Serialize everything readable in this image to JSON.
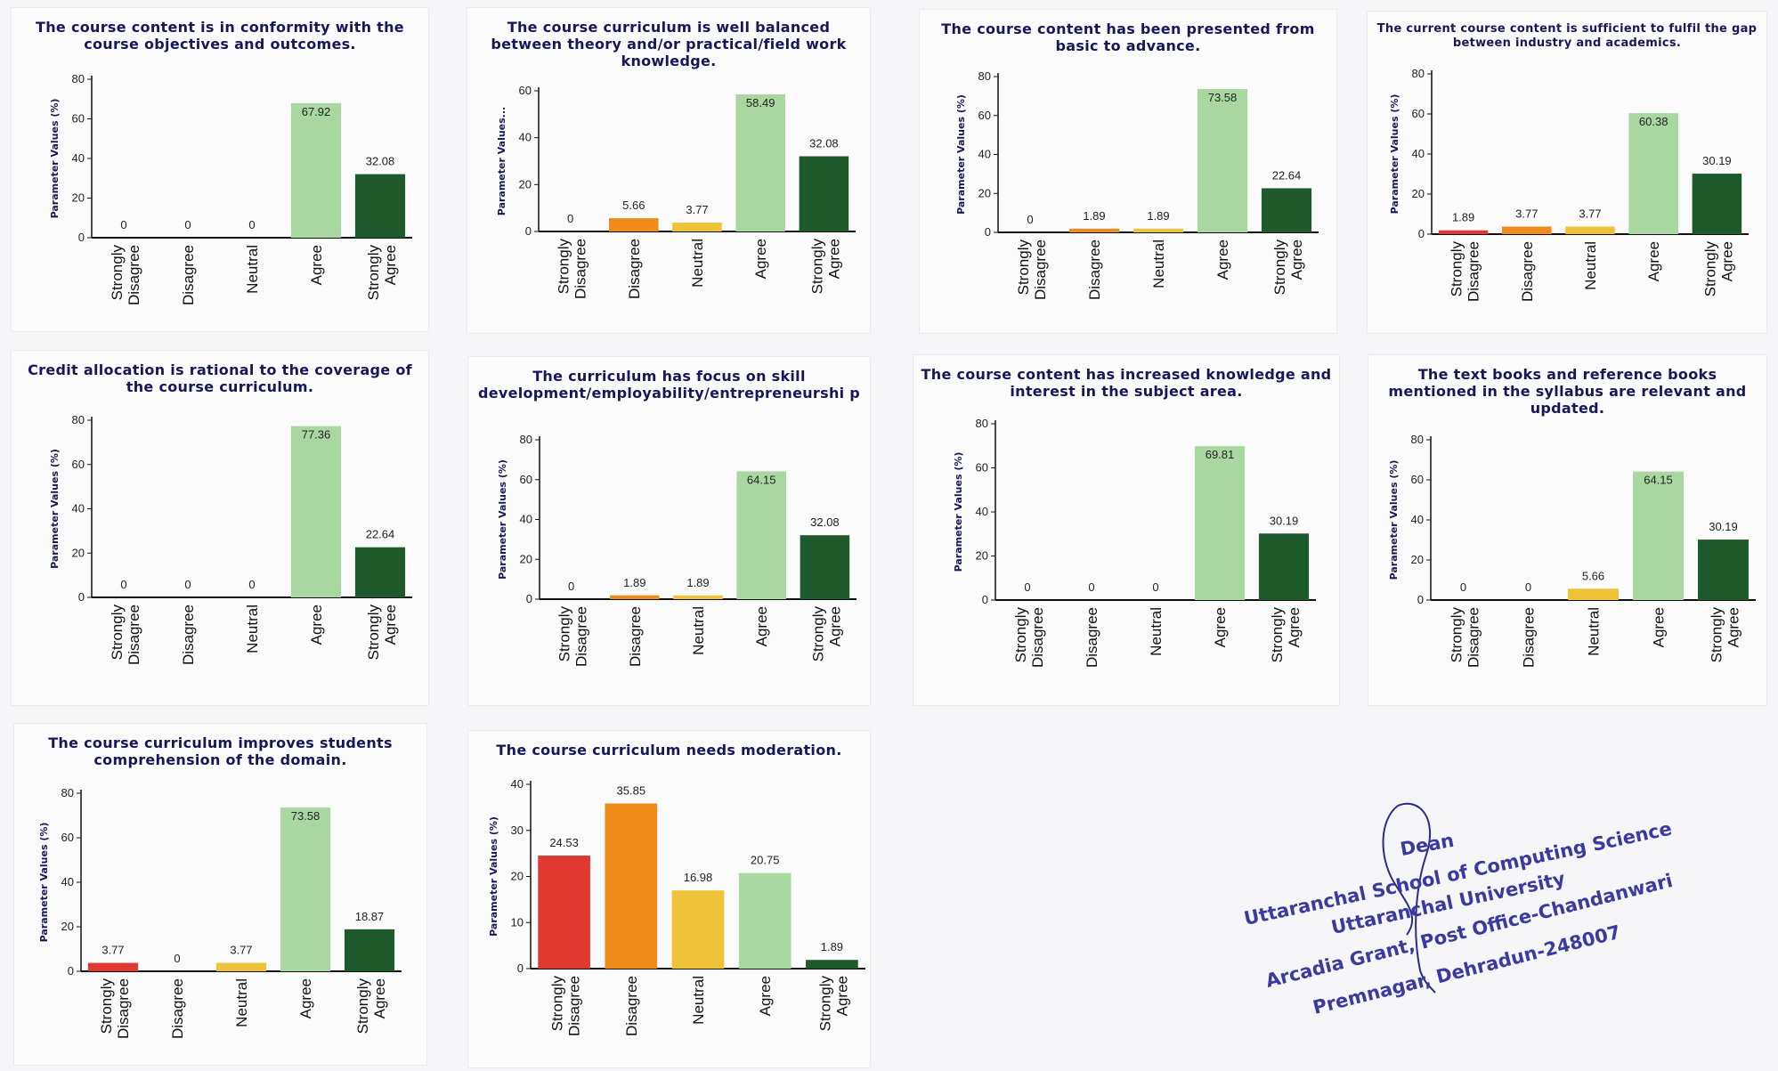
{
  "colors": {
    "strongly_disagree": "#e03a30",
    "disagree": "#f08a1a",
    "neutral": "#eec33a",
    "agree": "#a8d8a0",
    "strongly_agree": "#1f5a2c",
    "title": "#17175a"
  },
  "categories": [
    [
      "Strongly",
      "Disagree"
    ],
    [
      "Disagree"
    ],
    [
      "Neutral"
    ],
    [
      "Agree"
    ],
    [
      "Strongly",
      "Agree"
    ]
  ],
  "chart_data": [
    {
      "type": "bar",
      "title": "The course content is in conformity with the course objectives and outcomes.",
      "ylabel": "Parameter Values (%)",
      "values": [
        0,
        0,
        0,
        67.92,
        32.08
      ],
      "value_labels": [
        "0",
        "0",
        "0",
        "67.92",
        "32.08"
      ],
      "ylim": [
        0,
        80
      ],
      "yticks": [
        0,
        20,
        40,
        60,
        80
      ]
    },
    {
      "type": "bar",
      "title": "The course curriculum is well balanced between theory and/or practical/field work knowledge.",
      "ylabel": "Parameter Values...",
      "values": [
        0,
        5.66,
        3.77,
        58.49,
        32.08
      ],
      "value_labels": [
        "0",
        "5.66",
        "3.77",
        "58.49",
        "32.08"
      ],
      "ylim": [
        0,
        60
      ],
      "yticks": [
        0,
        20,
        40,
        60
      ]
    },
    {
      "type": "bar",
      "title": "The course content has been presented from basic to advance.",
      "ylabel": "Parameter Values (%)",
      "values": [
        0,
        1.89,
        1.89,
        73.58,
        22.64
      ],
      "value_labels": [
        "0",
        "1.89",
        "1.89",
        "73.58",
        "22.64"
      ],
      "ylim": [
        0,
        80
      ],
      "yticks": [
        0,
        20,
        40,
        60,
        80
      ]
    },
    {
      "type": "bar",
      "title": "The current course content is sufficient to fulfil the gap between industry and academics.",
      "ylabel": "Parameter Values (%)",
      "values": [
        1.89,
        3.77,
        3.77,
        60.38,
        30.19
      ],
      "value_labels": [
        "1.89",
        "3.77",
        "3.77",
        "60.38",
        "30.19"
      ],
      "ylim": [
        0,
        80
      ],
      "yticks": [
        0,
        20,
        40,
        60,
        80
      ]
    },
    {
      "type": "bar",
      "title": "Credit allocation is rational to the coverage of the course curriculum.",
      "ylabel": "Parameter Values (%)",
      "values": [
        0,
        0,
        0,
        77.36,
        22.64
      ],
      "value_labels": [
        "0",
        "0",
        "0",
        "77.36",
        "22.64"
      ],
      "ylim": [
        0,
        80
      ],
      "yticks": [
        0,
        20,
        40,
        60,
        80
      ]
    },
    {
      "type": "bar",
      "title": "The curriculum has focus on skill development/employability/entrepreneurshi p",
      "ylabel": "Parameter Values (%)",
      "values": [
        0,
        1.89,
        1.89,
        64.15,
        32.08
      ],
      "value_labels": [
        "0",
        "1.89",
        "1.89",
        "64.15",
        "32.08"
      ],
      "ylim": [
        0,
        80
      ],
      "yticks": [
        0,
        20,
        40,
        60,
        80
      ]
    },
    {
      "type": "bar",
      "title": "The course content has increased knowledge and interest in the subject area.",
      "ylabel": "Parameter Values (%)",
      "values": [
        0,
        0,
        0,
        69.81,
        30.19
      ],
      "value_labels": [
        "0",
        "0",
        "0",
        "69.81",
        "30.19"
      ],
      "ylim": [
        0,
        80
      ],
      "yticks": [
        0,
        20,
        40,
        60,
        80
      ]
    },
    {
      "type": "bar",
      "title": "The text books and reference books mentioned in the syllabus are relevant and updated.",
      "ylabel": "Parameter Values (%)",
      "values": [
        0,
        0,
        5.66,
        64.15,
        30.19
      ],
      "value_labels": [
        "0",
        "0",
        "5.66",
        "64.15",
        "30.19"
      ],
      "ylim": [
        0,
        80
      ],
      "yticks": [
        0,
        20,
        40,
        60,
        80
      ]
    },
    {
      "type": "bar",
      "title": "The course curriculum improves students comprehension of the domain.",
      "ylabel": "Parameter Values (%)",
      "values": [
        3.77,
        0,
        3.77,
        73.58,
        18.87
      ],
      "value_labels": [
        "3.77",
        "0",
        "3.77",
        "73.58",
        "18.87"
      ],
      "ylim": [
        0,
        80
      ],
      "yticks": [
        0,
        20,
        40,
        60,
        80
      ]
    },
    {
      "type": "bar",
      "title": "The course curriculum needs moderation.",
      "ylabel": "Parameter Values (%)",
      "values": [
        24.53,
        35.85,
        16.98,
        20.75,
        1.89
      ],
      "value_labels": [
        "24.53",
        "35.85",
        "16.98",
        "20.75",
        "1.89"
      ],
      "ylim": [
        0,
        40
      ],
      "yticks": [
        0,
        10,
        20,
        30,
        40
      ]
    }
  ],
  "stamp": {
    "lines": [
      "Dean",
      "Uttaranchal School of Computing Science",
      "Uttaranchal University",
      "Arcadia Grant, Post Office-Chandanwari",
      "Premnagar, Dehradun-248007"
    ]
  }
}
